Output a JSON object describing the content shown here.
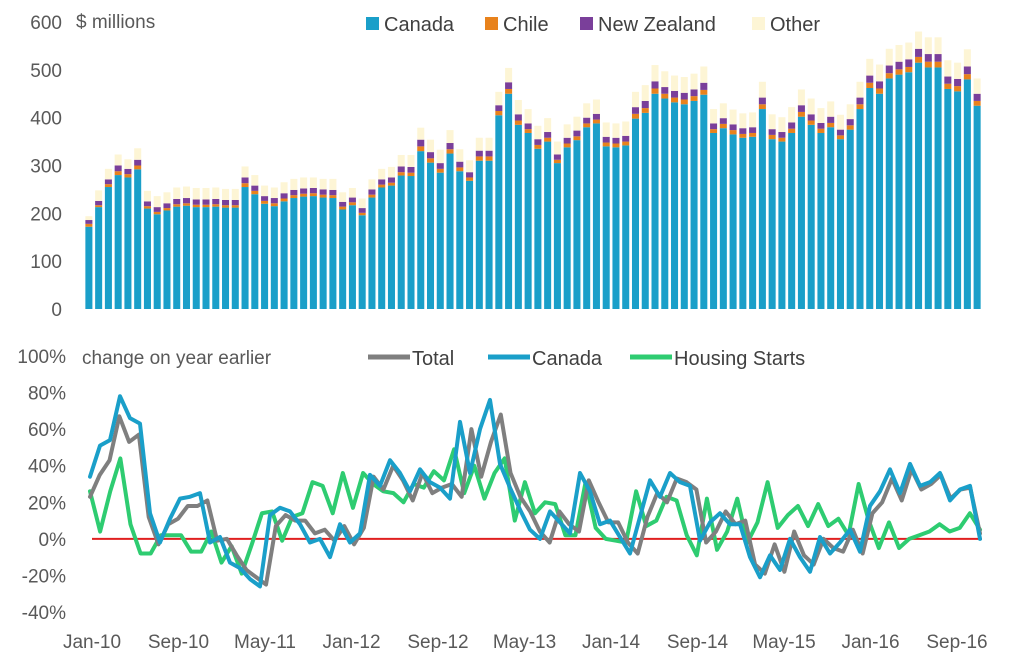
{
  "chart_data": [
    {
      "type": "bar",
      "stacked": true,
      "ylabel": "$ millions",
      "ylim": [
        0,
        600
      ],
      "yticks": [
        "0",
        "100",
        "200",
        "300",
        "400",
        "500",
        "600"
      ],
      "x_start": "Jan-10",
      "x_end": "Jan-17",
      "grid": false,
      "legend_position": "top",
      "series": [
        {
          "name": "Canada",
          "color": "#1a9fc9",
          "values": [
            172,
            213,
            255,
            280,
            275,
            292,
            210,
            198,
            206,
            214,
            216,
            213,
            213,
            214,
            212,
            212,
            255,
            240,
            220,
            215,
            225,
            232,
            235,
            236,
            233,
            232,
            208,
            217,
            196,
            233,
            254,
            258,
            279,
            278,
            330,
            306,
            285,
            325,
            288,
            268,
            310,
            310,
            405,
            450,
            385,
            368,
            335,
            350,
            305,
            338,
            353,
            380,
            388,
            340,
            338,
            342,
            398,
            410,
            450,
            440,
            432,
            428,
            435,
            448,
            368,
            378,
            365,
            358,
            360,
            418,
            355,
            350,
            368,
            402,
            385,
            368,
            380,
            355,
            375,
            418,
            462,
            450,
            482,
            490,
            495,
            515,
            505,
            505,
            460,
            455,
            480,
            425
          ]
        },
        {
          "name": "Chile",
          "color": "#e8821c",
          "values": [
            6,
            4,
            6,
            8,
            7,
            8,
            5,
            5,
            5,
            5,
            5,
            5,
            5,
            5,
            5,
            5,
            8,
            7,
            6,
            6,
            6,
            6,
            6,
            6,
            6,
            6,
            6,
            6,
            5,
            6,
            6,
            6,
            7,
            7,
            10,
            9,
            8,
            9,
            8,
            7,
            9,
            9,
            9,
            10,
            9,
            8,
            8,
            8,
            7,
            8,
            8,
            8,
            8,
            8,
            8,
            8,
            10,
            10,
            11,
            10,
            10,
            10,
            10,
            10,
            8,
            9,
            9,
            8,
            8,
            10,
            9,
            8,
            9,
            10,
            9,
            9,
            9,
            8,
            9,
            10,
            11,
            11,
            11,
            11,
            11,
            12,
            12,
            12,
            11,
            11,
            11,
            10
          ]
        },
        {
          "name": "New Zealand",
          "color": "#7a3f9a",
          "values": [
            8,
            9,
            10,
            12,
            11,
            12,
            10,
            10,
            10,
            11,
            11,
            11,
            11,
            11,
            11,
            11,
            12,
            11,
            10,
            11,
            11,
            11,
            11,
            11,
            11,
            11,
            10,
            10,
            10,
            11,
            11,
            11,
            12,
            12,
            14,
            13,
            12,
            13,
            12,
            11,
            12,
            12,
            12,
            14,
            13,
            12,
            12,
            12,
            11,
            12,
            12,
            12,
            12,
            12,
            12,
            12,
            14,
            15,
            15,
            14,
            14,
            14,
            14,
            15,
            12,
            12,
            12,
            12,
            12,
            14,
            12,
            12,
            13,
            14,
            13,
            12,
            13,
            12,
            13,
            14,
            15,
            15,
            16,
            16,
            16,
            17,
            16,
            16,
            15,
            15,
            16,
            15
          ]
        },
        {
          "name": "Other",
          "color": "#fdf5d5",
          "values": [
            8,
            22,
            22,
            23,
            20,
            24,
            22,
            23,
            23,
            24,
            24,
            24,
            24,
            24,
            23,
            23,
            23,
            22,
            22,
            22,
            23,
            23,
            23,
            22,
            22,
            23,
            20,
            20,
            20,
            21,
            22,
            22,
            24,
            25,
            25,
            26,
            28,
            27,
            26,
            25,
            27,
            27,
            28,
            30,
            30,
            30,
            28,
            29,
            27,
            28,
            29,
            30,
            30,
            30,
            30,
            30,
            32,
            33,
            34,
            33,
            32,
            33,
            33,
            34,
            30,
            31,
            31,
            31,
            31,
            33,
            31,
            31,
            32,
            33,
            33,
            31,
            32,
            31,
            31,
            33,
            35,
            35,
            35,
            35,
            35,
            36,
            35,
            35,
            34,
            34,
            36,
            32
          ]
        }
      ]
    },
    {
      "type": "line",
      "ylabel": "change on year earlier",
      "ylim": [
        -40,
        100
      ],
      "yticks": [
        "-40%",
        "-20%",
        "0%",
        "20%",
        "40%",
        "60%",
        "80%",
        "100%"
      ],
      "xticks": [
        "Jan-10",
        "Sep-10",
        "May-11",
        "Jan-12",
        "Sep-12",
        "May-13",
        "Jan-14",
        "Sep-14",
        "May-15",
        "Jan-16",
        "Sep-16"
      ],
      "x_start": "Jan-10",
      "x_end": "Jan-17",
      "zero_line_color": "#e02020",
      "grid": false,
      "legend_position": "top",
      "series": [
        {
          "name": "Total",
          "color": "#7f7f7f",
          "values": [
            23,
            35,
            43,
            67,
            53,
            57,
            12,
            -3,
            8,
            11,
            18,
            18,
            21,
            -1,
            0,
            -9,
            -17,
            -21,
            -25,
            7,
            13,
            10,
            10,
            3,
            5,
            -1,
            7,
            -3,
            6,
            34,
            27,
            40,
            32,
            21,
            36,
            25,
            28,
            30,
            23,
            60,
            34,
            53,
            68,
            36,
            23,
            15,
            4,
            -2,
            15,
            8,
            4,
            32,
            20,
            9,
            9,
            -2,
            -8,
            12,
            25,
            20,
            33,
            31,
            27,
            -2,
            4,
            15,
            8,
            10,
            -14,
            -19,
            -3,
            -18,
            4,
            -9,
            -14,
            0,
            -5,
            -7,
            5,
            -8,
            14,
            20,
            33,
            21,
            38,
            27,
            30,
            35,
            22,
            27,
            28,
            3
          ]
        },
        {
          "name": "Canada",
          "color": "#1a9fc9",
          "values": [
            34,
            51,
            54,
            78,
            66,
            63,
            14,
            -2,
            11,
            22,
            23,
            25,
            -2,
            1,
            -13,
            -16,
            -22,
            -26,
            13,
            17,
            15,
            8,
            -2,
            0,
            -10,
            8,
            -2,
            3,
            35,
            29,
            43,
            36,
            26,
            38,
            31,
            28,
            22,
            64,
            36,
            60,
            76,
            41,
            28,
            16,
            5,
            0,
            15,
            9,
            3,
            36,
            26,
            8,
            10,
            1,
            -8,
            12,
            32,
            23,
            36,
            31,
            29,
            -1,
            9,
            14,
            8,
            8,
            -10,
            -21,
            -9,
            -17,
            0,
            -10,
            -18,
            1,
            -8,
            -2,
            5,
            -7,
            18,
            26,
            38,
            25,
            41,
            29,
            31,
            36,
            21,
            27,
            29,
            0
          ]
        },
        {
          "name": "Housing Starts",
          "color": "#2ecc71",
          "values": [
            26,
            4,
            26,
            44,
            8,
            -8,
            -8,
            2,
            2,
            2,
            -7,
            -7,
            4,
            -13,
            -4,
            -19,
            -3,
            14,
            15,
            -1,
            12,
            14,
            31,
            29,
            14,
            36,
            17,
            36,
            30,
            26,
            25,
            20,
            30,
            28,
            37,
            32,
            49,
            25,
            40,
            22,
            36,
            44,
            10,
            31,
            14,
            20,
            19,
            2,
            2,
            31,
            6,
            0,
            -1,
            -2,
            26,
            7,
            10,
            23,
            21,
            2,
            -9,
            22,
            -6,
            4,
            22,
            -2,
            9,
            31,
            6,
            13,
            18,
            7,
            19,
            7,
            11,
            2,
            30,
            10,
            -5,
            9,
            -5,
            0,
            2,
            4,
            8,
            4,
            6,
            14,
            5
          ]
        }
      ]
    }
  ]
}
